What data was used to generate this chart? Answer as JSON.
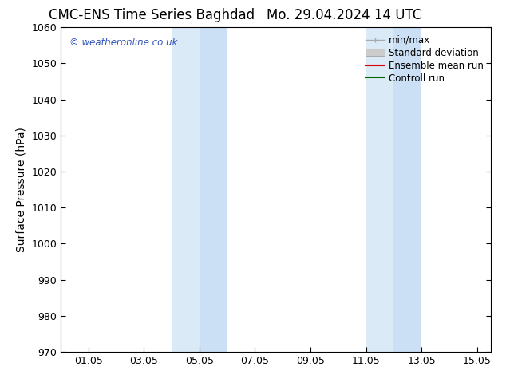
{
  "title_left": "CMC-ENS Time Series Baghdad",
  "title_right": "Mo. 29.04.2024 14 UTC",
  "ylabel": "Surface Pressure (hPa)",
  "ylim": [
    970,
    1060
  ],
  "yticks": [
    970,
    980,
    990,
    1000,
    1010,
    1020,
    1030,
    1040,
    1050,
    1060
  ],
  "xtick_labels": [
    "01.05",
    "03.05",
    "05.05",
    "07.05",
    "09.05",
    "11.05",
    "13.05",
    "15.05"
  ],
  "xtick_positions": [
    1.0,
    3.0,
    5.0,
    7.0,
    9.0,
    11.0,
    13.0,
    15.0
  ],
  "xlim": [
    0.0,
    15.5
  ],
  "shaded_bands": [
    {
      "xmin": 4.0,
      "xmax": 5.0,
      "color": "#daeaf7"
    },
    {
      "xmin": 5.0,
      "xmax": 6.0,
      "color": "#cce0f5"
    },
    {
      "xmin": 11.0,
      "xmax": 12.0,
      "color": "#daeaf7"
    },
    {
      "xmin": 12.0,
      "xmax": 13.0,
      "color": "#cce0f5"
    }
  ],
  "watermark_text": "© weatheronline.co.uk",
  "watermark_color": "#3355bb",
  "legend_items": [
    {
      "label": "min/max",
      "color": "#aaaaaa",
      "lw": 1.0
    },
    {
      "label": "Standard deviation",
      "color": "#cccccc",
      "lw": 6.0
    },
    {
      "label": "Ensemble mean run",
      "color": "#dd0000",
      "lw": 1.5
    },
    {
      "label": "Controll run",
      "color": "#006600",
      "lw": 1.5
    }
  ],
  "background_color": "#ffffff",
  "title_fontsize": 12,
  "axis_label_fontsize": 10,
  "tick_fontsize": 9,
  "legend_fontsize": 8.5
}
